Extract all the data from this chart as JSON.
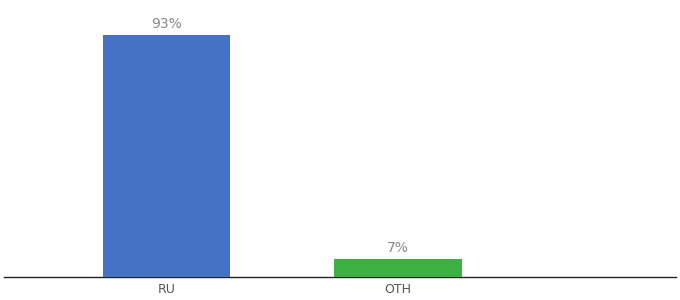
{
  "categories": [
    "RU",
    "OTH"
  ],
  "values": [
    93,
    7
  ],
  "bar_colors": [
    "#4472c4",
    "#3cb043"
  ],
  "labels": [
    "93%",
    "7%"
  ],
  "background_color": "#ffffff",
  "ylim": [
    0,
    105
  ],
  "xlim": [
    0.3,
    3.2
  ],
  "x_positions": [
    1,
    2
  ],
  "bar_width": 0.55,
  "label_fontsize": 10,
  "tick_fontsize": 9,
  "label_color": "#888888"
}
